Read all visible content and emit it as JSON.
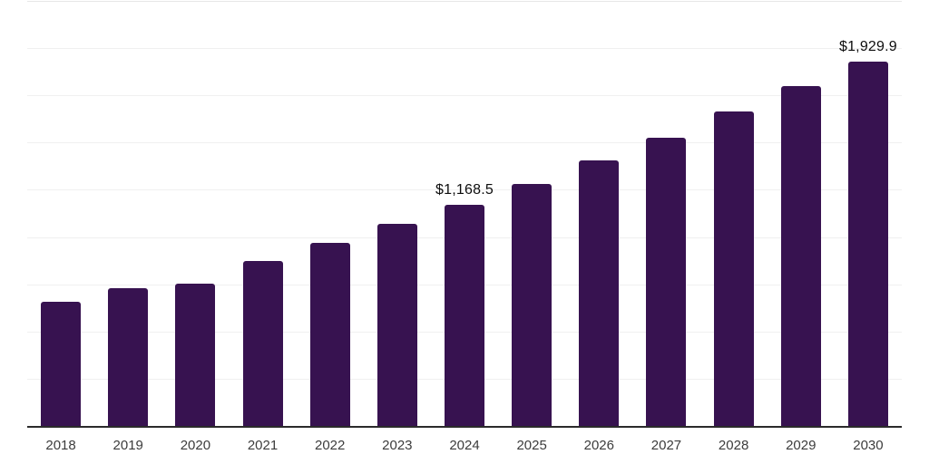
{
  "chart_style": {
    "background_color": "#ffffff",
    "bar_color": "#371250",
    "axis_line_color": "#2b2b2b",
    "gridline_color": "#f0f0f0",
    "top_border_color": "#e7e7e7",
    "tick_label_color": "#3c3c3c",
    "data_label_color": "#0d0d0d"
  },
  "chart_data": {
    "type": "bar",
    "title": "",
    "xlabel": "",
    "ylabel": "",
    "categories": [
      "2018",
      "2019",
      "2020",
      "2021",
      "2022",
      "2023",
      "2024",
      "2025",
      "2026",
      "2027",
      "2028",
      "2029",
      "2030"
    ],
    "values": [
      659,
      731,
      755,
      871,
      967,
      1068,
      1168.5,
      1280,
      1405,
      1526,
      1665,
      1800,
      1929.9
    ],
    "data_labels": [
      "",
      "",
      "",
      "",
      "",
      "",
      "$1,168.5",
      "",
      "",
      "",
      "",
      "",
      "$1,929.9"
    ],
    "ylim": [
      0,
      2250
    ],
    "gridline_interval": 250,
    "grid": true,
    "legend": false,
    "y_axis_tick_labels_visible": false
  }
}
